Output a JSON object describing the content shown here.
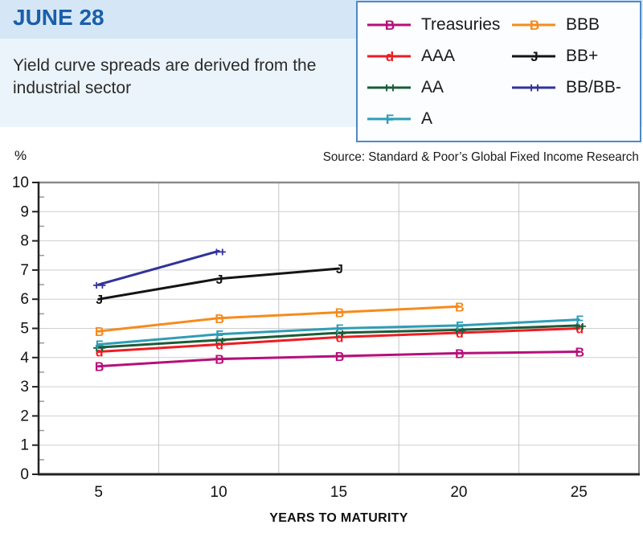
{
  "header": {
    "title": "JUNE 28",
    "subtitle": "Yield curve spreads are derived from the industrial sector"
  },
  "source_note": "Source: Standard & Poor’s Global Fixed Income Research",
  "y_unit_label": "%",
  "x_axis_title": "YEARS TO MATURITY",
  "colors": {
    "header_band": "#d5e7f6",
    "subtitle_band": "#ebf4fb",
    "title_blue": "#1b5ea9",
    "legend_border": "#4e88c7",
    "gridline": "#cfcfcf",
    "axis_dark": "#222222"
  },
  "chart_data": {
    "type": "line",
    "title": "JUNE 28",
    "subtitle": "Yield curve spreads are derived from the industrial sector",
    "source": "Source: Standard & Poor’s Global Fixed Income Research",
    "xlabel": "YEARS TO MATURITY",
    "ylabel": "%",
    "x": [
      5,
      10,
      15,
      20,
      25
    ],
    "ylim": [
      0,
      10
    ],
    "y_tick_step": 1,
    "grid": true,
    "legend_position": "top-right",
    "series": [
      {
        "name": "Treasuries",
        "marker": "B",
        "color": "#b5107a",
        "values": [
          3.7,
          3.95,
          4.05,
          4.15,
          4.2
        ]
      },
      {
        "name": "AAA",
        "marker": "d",
        "color": "#ee1c23",
        "values": [
          4.2,
          4.45,
          4.7,
          4.85,
          5.0
        ]
      },
      {
        "name": "AA",
        "marker": "++",
        "color": "#1b5c38",
        "values": [
          4.35,
          4.6,
          4.85,
          4.95,
          5.1
        ]
      },
      {
        "name": "A",
        "marker": "F",
        "color": "#2f9db7",
        "values": [
          4.45,
          4.8,
          5.0,
          5.1,
          5.3
        ]
      },
      {
        "name": "BBB",
        "marker": "B",
        "color": "#f68b1e",
        "values": [
          4.9,
          5.35,
          5.55,
          5.75,
          null
        ]
      },
      {
        "name": "BB+",
        "marker": "J",
        "color": "#141414",
        "values": [
          6.0,
          6.7,
          7.05,
          null,
          null
        ]
      },
      {
        "name": "BB/BB-",
        "marker": "++",
        "color": "#32329b",
        "values": [
          6.5,
          7.65,
          null,
          null,
          null
        ]
      }
    ]
  }
}
